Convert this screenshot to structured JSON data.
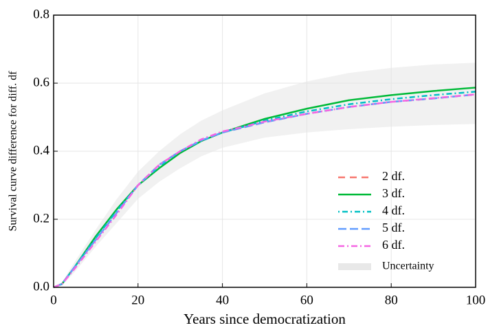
{
  "chart_data": {
    "type": "line",
    "xlabel": "Years since democratization",
    "ylabel": "Survival curve difference for diff. df",
    "x": [
      0,
      2,
      5,
      10,
      15,
      20,
      25,
      30,
      35,
      40,
      45,
      50,
      60,
      70,
      80,
      90,
      100
    ],
    "series": [
      {
        "name": "2 df.",
        "color": "#f8766d",
        "dash": "10 7",
        "values": [
          0,
          0.01,
          0.06,
          0.14,
          0.22,
          0.3,
          0.36,
          0.4,
          0.43,
          0.455,
          0.47,
          0.485,
          0.51,
          0.53,
          0.545,
          0.555,
          0.567
        ]
      },
      {
        "name": "3 df.",
        "color": "#00ba38",
        "dash": "none",
        "values": [
          0,
          0.01,
          0.06,
          0.15,
          0.23,
          0.3,
          0.35,
          0.395,
          0.43,
          0.455,
          0.475,
          0.495,
          0.525,
          0.55,
          0.565,
          0.577,
          0.587
        ]
      },
      {
        "name": "4 df.",
        "color": "#00bfc4",
        "dash": "2 4 8 4",
        "values": [
          0,
          0.01,
          0.06,
          0.145,
          0.225,
          0.3,
          0.355,
          0.4,
          0.43,
          0.455,
          0.472,
          0.49,
          0.517,
          0.538,
          0.553,
          0.565,
          0.575
        ]
      },
      {
        "name": "5 df.",
        "color": "#619cff",
        "dash": "12 5",
        "values": [
          0,
          0.01,
          0.06,
          0.14,
          0.22,
          0.3,
          0.36,
          0.4,
          0.432,
          0.455,
          0.47,
          0.485,
          0.51,
          0.53,
          0.545,
          0.555,
          0.567
        ]
      },
      {
        "name": "6 df.",
        "color": "#f564e3",
        "dash": "9 4 2 4",
        "values": [
          0,
          0.01,
          0.055,
          0.135,
          0.215,
          0.3,
          0.36,
          0.4,
          0.435,
          0.458,
          0.472,
          0.487,
          0.51,
          0.53,
          0.545,
          0.556,
          0.567
        ]
      }
    ],
    "band": {
      "name": "Uncertainty",
      "color": "#e8e8e8",
      "lower": [
        0,
        0.005,
        0.045,
        0.12,
        0.19,
        0.26,
        0.31,
        0.35,
        0.385,
        0.41,
        0.425,
        0.44,
        0.455,
        0.465,
        0.472,
        0.477,
        0.48
      ],
      "upper": [
        0,
        0.015,
        0.075,
        0.17,
        0.26,
        0.34,
        0.4,
        0.45,
        0.49,
        0.52,
        0.545,
        0.57,
        0.605,
        0.63,
        0.645,
        0.655,
        0.66
      ]
    },
    "xlim": [
      0,
      100
    ],
    "ylim": [
      0,
      0.8
    ],
    "xticks": [
      0,
      20,
      40,
      60,
      80,
      100
    ],
    "yticks": [
      {
        "value": 0,
        "label": "0.0"
      },
      {
        "value": 0.2,
        "label": "0.2"
      },
      {
        "value": 0.4,
        "label": "0.4"
      },
      {
        "value": 0.6,
        "label": "0.6"
      },
      {
        "value": 0.8,
        "label": "0.8"
      }
    ],
    "grid": true
  }
}
